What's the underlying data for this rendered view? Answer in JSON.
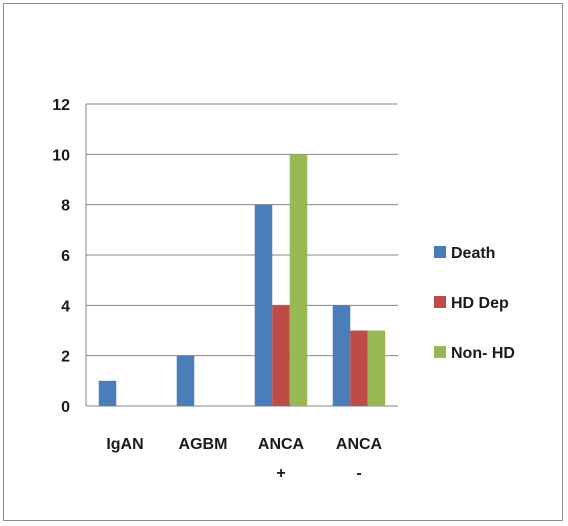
{
  "chart_data": {
    "type": "bar",
    "categories": [
      [
        "IgAN"
      ],
      [
        "AGBM"
      ],
      [
        "ANCA",
        "+"
      ],
      [
        "ANCA",
        "-"
      ]
    ],
    "series": [
      {
        "name": "Death",
        "color": "#4a7ebb",
        "values": [
          1,
          2,
          8,
          4
        ]
      },
      {
        "name": "HD Dep",
        "color": "#be4b48",
        "values": [
          0,
          0,
          4,
          3
        ]
      },
      {
        "name": "Non- HD",
        "color": "#98b954",
        "values": [
          0,
          0,
          10,
          3
        ]
      }
    ],
    "yticks": [
      "0",
      "2",
      "4",
      "6",
      "8",
      "10",
      "12"
    ],
    "ylim": [
      0,
      12
    ],
    "grid": true,
    "legend": "right",
    "title": "",
    "xlabel": "",
    "ylabel": ""
  }
}
